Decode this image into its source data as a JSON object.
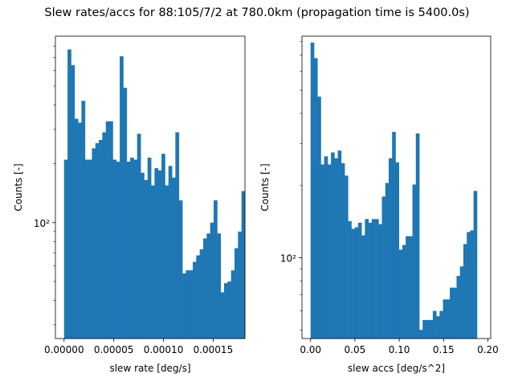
{
  "figure": {
    "suptitle": "Slew rates/accs for 88:105/7/2 at 780.0km (propagation time is 5400.0s)",
    "bar_color": "#1f77b4"
  },
  "chart_data": [
    {
      "type": "bar",
      "title": "",
      "xlabel": "slew rate [deg/s]",
      "ylabel": "Counts [-]",
      "yscale": "log",
      "xlim": [
        -8.7e-06,
        0.000182
      ],
      "ylim": [
        25.5,
        900
      ],
      "grid": false,
      "legend": "none",
      "x_ticks": [
        {
          "value": 0.0,
          "label": "0.00000"
        },
        {
          "value": 5e-05,
          "label": "0.00005"
        },
        {
          "value": 0.0001,
          "label": "0.00010"
        },
        {
          "value": 0.00015,
          "label": "0.00015"
        }
      ],
      "y_tick_label": "10²",
      "bin_start": 0.0,
      "bin_width": 3.5e-06,
      "values": [
        210,
        770,
        640,
        340,
        325,
        420,
        210,
        210,
        240,
        255,
        265,
        290,
        330,
        330,
        210,
        205,
        710,
        490,
        205,
        215,
        210,
        285,
        180,
        165,
        215,
        155,
        190,
        185,
        225,
        155,
        195,
        170,
        290,
        130,
        55,
        57,
        57,
        63,
        68,
        73,
        83,
        88,
        100,
        130,
        88,
        44,
        49,
        50,
        57,
        74,
        90,
        145
      ]
    },
    {
      "type": "bar",
      "title": "",
      "xlabel": "slew accs [deg/s^2]",
      "ylabel": "Counts [-]",
      "yscale": "log",
      "xlim": [
        -0.0097,
        0.2032
      ],
      "ylim": [
        46,
        840
      ],
      "grid": false,
      "legend": "none",
      "x_ticks": [
        {
          "value": 0.0,
          "label": "0.00"
        },
        {
          "value": 0.05,
          "label": "0.05"
        },
        {
          "value": 0.1,
          "label": "0.10"
        },
        {
          "value": 0.15,
          "label": "0.15"
        },
        {
          "value": 0.2,
          "label": "0.20"
        }
      ],
      "y_tick_label": "10²",
      "bin_start": 0.0,
      "bin_width": 0.00383,
      "values": [
        790,
        680,
        470,
        245,
        265,
        245,
        275,
        260,
        280,
        248,
        220,
        142,
        132,
        134,
        140,
        124,
        145,
        140,
        145,
        145,
        138,
        180,
        205,
        260,
        335,
        250,
        108,
        113,
        123,
        123,
        202,
        330,
        50,
        55,
        55,
        55,
        60,
        57,
        60,
        67,
        67,
        75,
        75,
        84,
        92,
        114,
        128,
        130,
        190
      ]
    }
  ]
}
